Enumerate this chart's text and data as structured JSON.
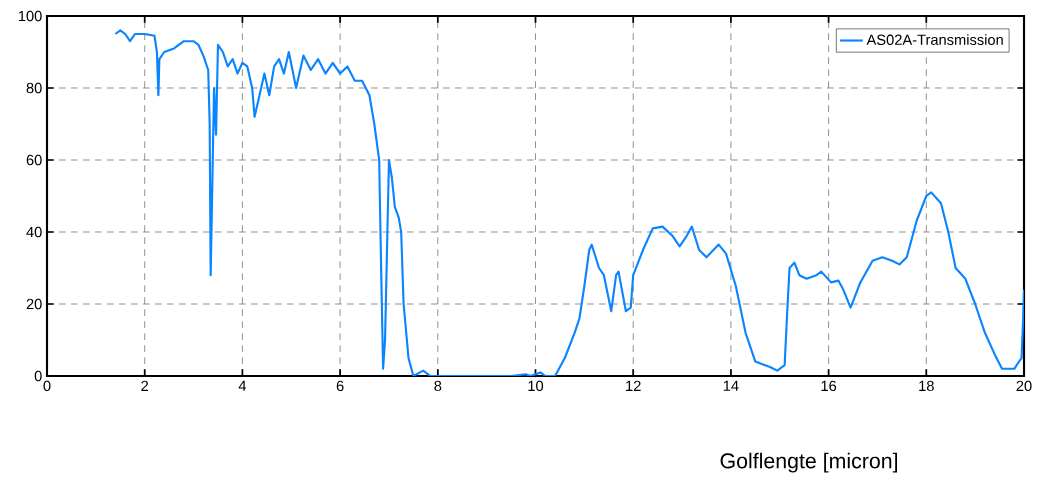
{
  "chart_data": {
    "type": "line",
    "xlabel": "Golflengte [micron]",
    "xlim": [
      0,
      20
    ],
    "ylim": [
      0,
      100
    ],
    "xticks": [
      0,
      2,
      4,
      6,
      8,
      10,
      12,
      14,
      16,
      18,
      20
    ],
    "yticks": [
      0,
      20,
      40,
      60,
      80,
      100
    ],
    "grid": true,
    "legend": "top right",
    "line_style": "solid",
    "series": [
      {
        "name": "AS02A-Transmission",
        "color": "#0a84ff",
        "x": [
          1.4,
          1.5,
          1.6,
          1.7,
          1.8,
          2.0,
          2.2,
          2.25,
          2.28,
          2.3,
          2.4,
          2.6,
          2.8,
          3.0,
          3.1,
          3.2,
          3.3,
          3.33,
          3.35,
          3.38,
          3.42,
          3.46,
          3.5,
          3.6,
          3.7,
          3.8,
          3.9,
          4.0,
          4.1,
          4.2,
          4.25,
          4.35,
          4.45,
          4.55,
          4.65,
          4.75,
          4.85,
          4.95,
          5.1,
          5.25,
          5.4,
          5.55,
          5.7,
          5.85,
          6.0,
          6.15,
          6.3,
          6.45,
          6.6,
          6.7,
          6.8,
          6.83,
          6.88,
          6.92,
          7.0,
          7.06,
          7.12,
          7.2,
          7.25,
          7.3,
          7.4,
          7.5,
          7.7,
          7.85,
          8.5,
          9.5,
          9.8,
          9.9,
          10.1,
          10.2,
          10.4,
          10.6,
          10.8,
          10.9,
          11.0,
          11.1,
          11.15,
          11.3,
          11.4,
          11.55,
          11.65,
          11.7,
          11.85,
          11.95,
          12.0,
          12.2,
          12.4,
          12.6,
          12.8,
          12.95,
          13.1,
          13.2,
          13.35,
          13.5,
          13.75,
          13.9,
          14.1,
          14.3,
          14.5,
          14.8,
          14.95,
          15.1,
          15.15,
          15.2,
          15.3,
          15.4,
          15.55,
          15.75,
          15.85,
          16.05,
          16.2,
          16.3,
          16.45,
          16.65,
          16.9,
          17.1,
          17.3,
          17.45,
          17.6,
          17.8,
          18.0,
          18.1,
          18.3,
          18.45,
          18.6,
          18.8,
          19.0,
          19.2,
          19.4,
          19.55,
          19.8,
          19.95,
          19.98,
          20.0
        ],
        "values": [
          95,
          96,
          95,
          93,
          95,
          95,
          94.5,
          90,
          78,
          88,
          90,
          91,
          93,
          93,
          92,
          89,
          85,
          70,
          28,
          50,
          80,
          67,
          92,
          90,
          86,
          88,
          84,
          87,
          86,
          80,
          72,
          78,
          84,
          78,
          86,
          88,
          84,
          90,
          80,
          89,
          85,
          88,
          84,
          87,
          84,
          86,
          82,
          82,
          78,
          70,
          60,
          37,
          2,
          10,
          60,
          55,
          47,
          44,
          40,
          20,
          5,
          0,
          1.5,
          0,
          0,
          0,
          0.5,
          0,
          1,
          0,
          0,
          5,
          12,
          16,
          25,
          35,
          36.5,
          30,
          28,
          18,
          28,
          29,
          18,
          19,
          28,
          35,
          41,
          41.5,
          39,
          36,
          39,
          41.5,
          35,
          33,
          36.5,
          34,
          25,
          12,
          4,
          2.5,
          1.5,
          3,
          17,
          30,
          31.5,
          28,
          27,
          28,
          29,
          26,
          26.5,
          24,
          19,
          26,
          32,
          33,
          32,
          31,
          33,
          43,
          50,
          51,
          48,
          40,
          30,
          27,
          20,
          12,
          6,
          2,
          2,
          5,
          15,
          24
        ]
      }
    ]
  }
}
